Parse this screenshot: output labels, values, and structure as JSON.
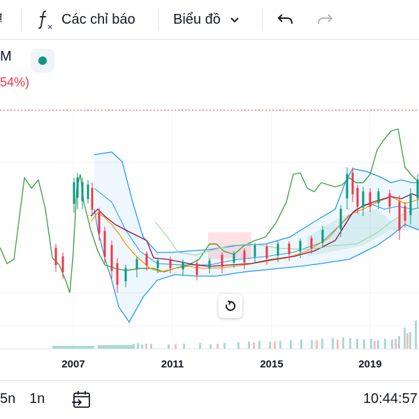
{
  "toolbar": {
    "indicators_label": "Các chỉ báo",
    "chart_type_label": "Biểu đồ",
    "cut_symbol": "₫"
  },
  "legend": {
    "symbol_suffix": "M",
    "change_text": "54%)"
  },
  "xaxis": {
    "ticks": [
      "2007",
      "2011",
      "2015",
      "2019"
    ]
  },
  "bottom": {
    "range_a": "5n",
    "range_b": "1n",
    "clock": "10:44:57"
  },
  "colors": {
    "up": "#089981",
    "down": "#f23645",
    "line_green": "#43a047",
    "band_blue": "#2196f3",
    "ma_orange": "#ff9800",
    "ma_maroon": "#880e4f"
  },
  "chart_data": {
    "type": "candlestick",
    "x_ticks": [
      "2007",
      "2011",
      "2015",
      "2019"
    ],
    "indicators": [
      "Bollinger Bands",
      "Ichimoku Cloud",
      "Moving Averages",
      "Volume"
    ]
  }
}
